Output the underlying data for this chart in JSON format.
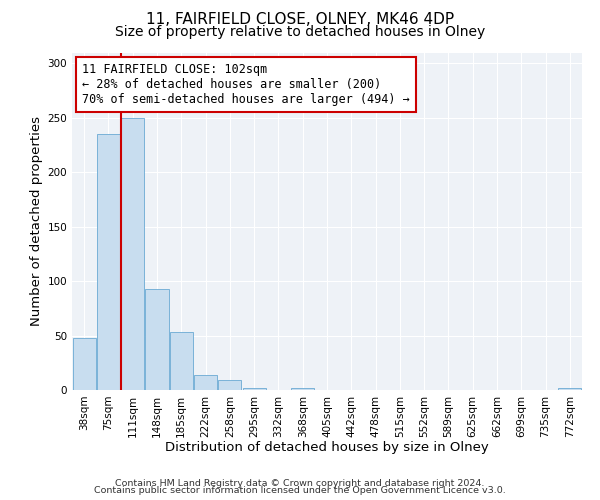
{
  "title": "11, FAIRFIELD CLOSE, OLNEY, MK46 4DP",
  "subtitle": "Size of property relative to detached houses in Olney",
  "xlabel": "Distribution of detached houses by size in Olney",
  "ylabel": "Number of detached properties",
  "bin_labels": [
    "38sqm",
    "75sqm",
    "111sqm",
    "148sqm",
    "185sqm",
    "222sqm",
    "258sqm",
    "295sqm",
    "332sqm",
    "368sqm",
    "405sqm",
    "442sqm",
    "478sqm",
    "515sqm",
    "552sqm",
    "589sqm",
    "625sqm",
    "662sqm",
    "699sqm",
    "735sqm",
    "772sqm"
  ],
  "bar_heights": [
    48,
    235,
    250,
    93,
    53,
    14,
    9,
    2,
    0,
    2,
    0,
    0,
    0,
    0,
    0,
    0,
    0,
    0,
    0,
    0,
    2
  ],
  "bar_color": "#c8ddef",
  "bar_edge_color": "#6aaad4",
  "vline_color": "#cc0000",
  "annotation_text": "11 FAIRFIELD CLOSE: 102sqm\n← 28% of detached houses are smaller (200)\n70% of semi-detached houses are larger (494) →",
  "annotation_box_facecolor": "#ffffff",
  "annotation_box_edgecolor": "#cc0000",
  "ylim": [
    0,
    310
  ],
  "yticks": [
    0,
    50,
    100,
    150,
    200,
    250,
    300
  ],
  "footer_line1": "Contains HM Land Registry data © Crown copyright and database right 2024.",
  "footer_line2": "Contains public sector information licensed under the Open Government Licence v3.0.",
  "background_color": "#ffffff",
  "plot_bg_color": "#eef2f7",
  "title_fontsize": 11,
  "subtitle_fontsize": 10,
  "axis_label_fontsize": 9.5,
  "tick_fontsize": 7.5,
  "annotation_fontsize": 8.5,
  "footer_fontsize": 6.8
}
